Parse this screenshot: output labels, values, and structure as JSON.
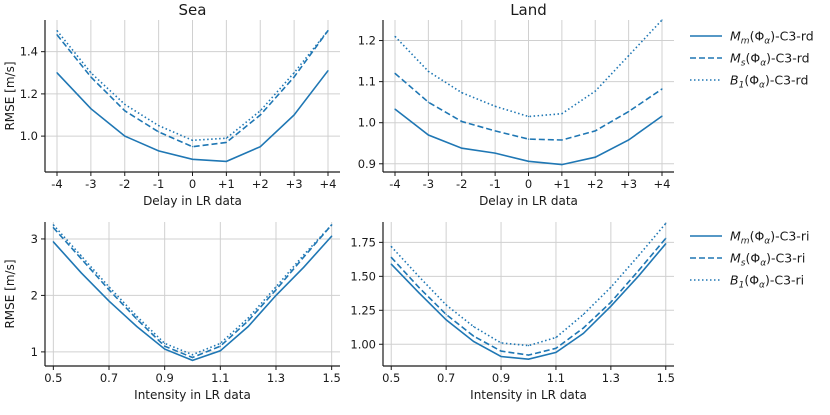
{
  "chart_data": [
    {
      "type": "line",
      "title": "Sea",
      "xlabel": "Delay in LR data",
      "ylabel": "RMSE [m/s]",
      "categories": [
        "-4",
        "-3",
        "-2",
        "-1",
        "0",
        "+1",
        "+2",
        "+3",
        "+4"
      ],
      "ylim": [
        0.83,
        1.55
      ],
      "yticks": [
        1.0,
        1.2,
        1.4
      ],
      "ytick_labels": [
        "1.0",
        "1.2",
        "1.4"
      ],
      "series": [
        {
          "name": "M_m(Φ_α)-C3-rd",
          "style": "solid",
          "values": [
            1.3,
            1.13,
            1.0,
            0.93,
            0.89,
            0.88,
            0.95,
            1.1,
            1.31
          ]
        },
        {
          "name": "M_s(Φ_α)-C3-rd",
          "style": "dashed",
          "values": [
            1.48,
            1.28,
            1.12,
            1.02,
            0.95,
            0.97,
            1.1,
            1.28,
            1.5
          ]
        },
        {
          "name": "B_1(Φ_α)-C3-rd",
          "style": "dotted",
          "values": [
            1.5,
            1.3,
            1.15,
            1.05,
            0.98,
            0.99,
            1.12,
            1.3,
            1.5
          ]
        }
      ]
    },
    {
      "type": "line",
      "title": "Land",
      "xlabel": "Delay in LR data",
      "ylabel": "",
      "categories": [
        "-4",
        "-3",
        "-2",
        "-1",
        "0",
        "+1",
        "+2",
        "+3",
        "+4"
      ],
      "ylim": [
        0.88,
        1.25
      ],
      "yticks": [
        0.9,
        1.0,
        1.1,
        1.2
      ],
      "ytick_labels": [
        "0.9",
        "1.0",
        "1.1",
        "1.2"
      ],
      "series": [
        {
          "name": "M_m(Φ_α)-C3-rd",
          "style": "solid",
          "values": [
            1.033,
            0.97,
            0.938,
            0.926,
            0.906,
            0.898,
            0.916,
            0.958,
            1.016
          ]
        },
        {
          "name": "M_s(Φ_α)-C3-rd",
          "style": "dashed",
          "values": [
            1.12,
            1.05,
            1.003,
            0.98,
            0.96,
            0.958,
            0.98,
            1.027,
            1.082
          ]
        },
        {
          "name": "B_1(Φ_α)-C3-rd",
          "style": "dotted",
          "values": [
            1.21,
            1.125,
            1.073,
            1.04,
            1.015,
            1.022,
            1.077,
            1.163,
            1.25
          ]
        }
      ]
    },
    {
      "type": "line",
      "title": "",
      "xlabel": "Intensity in LR data",
      "ylabel": "RMSE [m/s]",
      "x": [
        0.5,
        0.6,
        0.7,
        0.8,
        0.9,
        1.0,
        1.1,
        1.2,
        1.3,
        1.4,
        1.5
      ],
      "xticks": [
        0.5,
        0.7,
        0.9,
        1.1,
        1.3,
        1.5
      ],
      "xtick_labels": [
        "0.5",
        "0.7",
        "0.9",
        "1.1",
        "1.3",
        "1.5"
      ],
      "xlim": [
        0.47,
        1.53
      ],
      "ylim": [
        0.75,
        3.3
      ],
      "yticks": [
        1,
        2,
        3
      ],
      "ytick_labels": [
        "1",
        "2",
        "3"
      ],
      "series": [
        {
          "name": "M_m(Φ_α)-C3-ri",
          "style": "solid",
          "values": [
            2.95,
            2.4,
            1.9,
            1.45,
            1.05,
            0.85,
            1.02,
            1.45,
            2.0,
            2.5,
            3.05
          ]
        },
        {
          "name": "M_s(Φ_α)-C3-ri",
          "style": "dashed",
          "values": [
            3.2,
            2.65,
            2.1,
            1.58,
            1.1,
            0.9,
            1.1,
            1.55,
            2.1,
            2.68,
            3.25
          ]
        },
        {
          "name": "B_1(Φ_α)-C3-ri",
          "style": "dotted",
          "values": [
            3.25,
            2.7,
            2.15,
            1.63,
            1.15,
            0.95,
            1.15,
            1.6,
            2.15,
            2.72,
            3.25
          ]
        }
      ]
    },
    {
      "type": "line",
      "title": "",
      "xlabel": "Intensity in LR data",
      "ylabel": "",
      "x": [
        0.5,
        0.6,
        0.7,
        0.8,
        0.9,
        1.0,
        1.1,
        1.2,
        1.3,
        1.4,
        1.5
      ],
      "xticks": [
        0.5,
        0.7,
        0.9,
        1.1,
        1.3,
        1.5
      ],
      "xtick_labels": [
        "0.5",
        "0.7",
        "0.9",
        "1.1",
        "1.3",
        "1.5"
      ],
      "xlim": [
        0.47,
        1.53
      ],
      "ylim": [
        0.84,
        1.9
      ],
      "yticks": [
        1.0,
        1.25,
        1.5,
        1.75
      ],
      "ytick_labels": [
        "1.00",
        "1.25",
        "1.50",
        "1.75"
      ],
      "series": [
        {
          "name": "M_m(Φ_α)-C3-ri",
          "style": "solid",
          "values": [
            1.59,
            1.38,
            1.18,
            1.02,
            0.91,
            0.89,
            0.94,
            1.08,
            1.28,
            1.5,
            1.74
          ]
        },
        {
          "name": "M_s(Φ_α)-C3-ri",
          "style": "dashed",
          "values": [
            1.64,
            1.42,
            1.22,
            1.06,
            0.95,
            0.92,
            0.97,
            1.12,
            1.31,
            1.54,
            1.78
          ]
        },
        {
          "name": "B_1(Φ_α)-C3-ri",
          "style": "dotted",
          "values": [
            1.72,
            1.5,
            1.29,
            1.13,
            1.01,
            0.99,
            1.05,
            1.22,
            1.42,
            1.65,
            1.89
          ]
        }
      ]
    }
  ],
  "legends": [
    {
      "entries": [
        {
          "base": "M",
          "sub": "m",
          "suffix": "(Φ",
          "alpha": "α",
          "tail": ")-C3-rd",
          "style": "solid"
        },
        {
          "base": "M",
          "sub": "s",
          "suffix": "(Φ",
          "alpha": "α",
          "tail": ")-C3-rd",
          "style": "dashed"
        },
        {
          "base": "B",
          "sub": "1",
          "suffix": "(Φ",
          "alpha": "α",
          "tail": ")-C3-rd",
          "style": "dotted"
        }
      ]
    },
    {
      "entries": [
        {
          "base": "M",
          "sub": "m",
          "suffix": "(Φ",
          "alpha": "α",
          "tail": ")-C3-ri",
          "style": "solid"
        },
        {
          "base": "M",
          "sub": "s",
          "suffix": "(Φ",
          "alpha": "α",
          "tail": ")-C3-ri",
          "style": "dashed"
        },
        {
          "base": "B",
          "sub": "1",
          "suffix": "(Φ",
          "alpha": "α",
          "tail": ")-C3-ri",
          "style": "dotted"
        }
      ]
    }
  ],
  "colors": {
    "line": "#1f77b4",
    "grid": "#d0d0d0",
    "axis": "#1a1a1a"
  }
}
